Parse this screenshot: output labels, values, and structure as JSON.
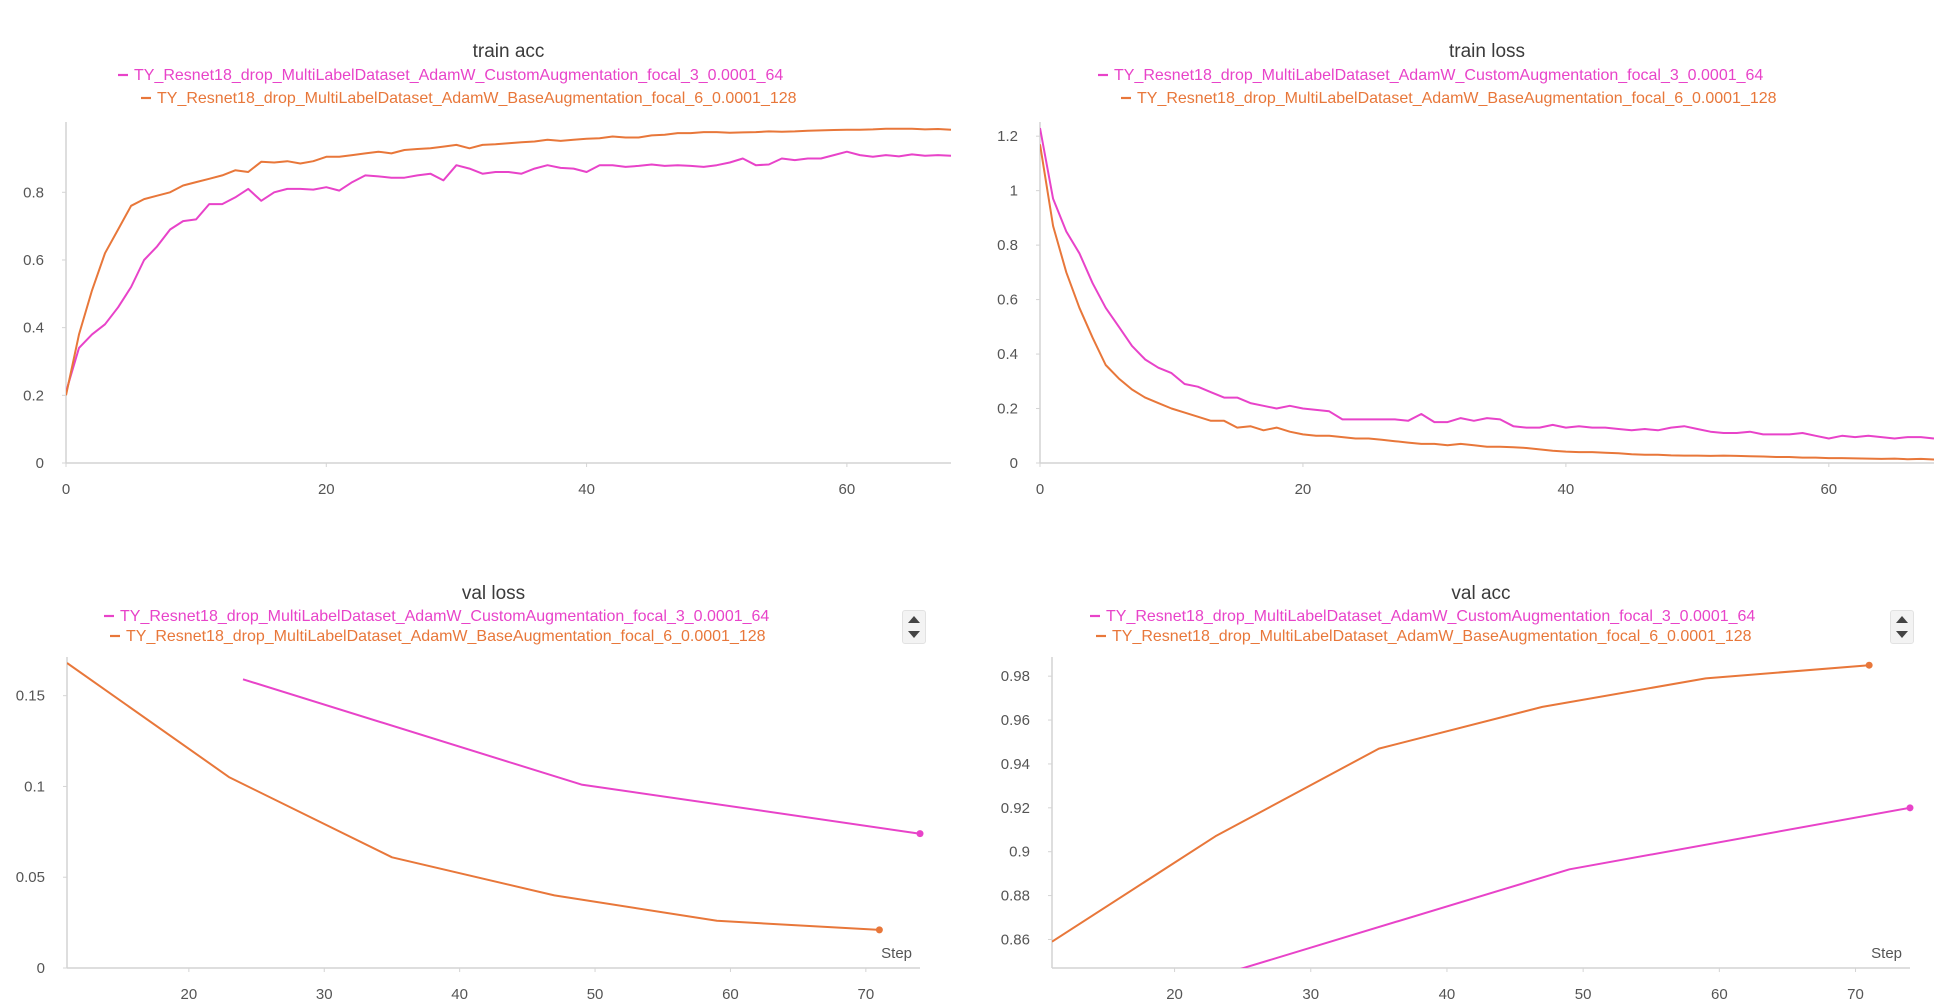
{
  "colors": {
    "pink": "#e843c9",
    "orange": "#e8773a",
    "axis": "#d4d4d4",
    "grid": "#e9e9e9"
  },
  "chart_data": [
    {
      "type": "line",
      "title": "train acc",
      "xlabel": "",
      "ylabel": "",
      "xlim": [
        0,
        68
      ],
      "ylim": [
        0,
        0.99
      ],
      "xticks": [
        0,
        20,
        40,
        60
      ],
      "yticks": [
        0,
        0.2,
        0.4,
        0.6,
        0.8
      ],
      "xtick_labels": [
        "0",
        "20",
        "40",
        "60"
      ],
      "ytick_labels": [
        "0",
        "0.2",
        "0.4",
        "0.6",
        "0.8"
      ],
      "legend_position": "top-center",
      "series": [
        {
          "name": "TY_Resnet18_drop_MultiLabelDataset_AdamW_CustomAugmentation_focal_3_0.0001_64",
          "color": "#e843c9",
          "x": [
            0,
            1,
            2,
            3,
            4,
            5,
            6,
            7,
            8,
            9,
            10,
            11,
            12,
            13,
            14,
            15,
            16,
            17,
            18,
            19,
            20,
            21,
            22,
            23,
            24,
            25,
            26,
            27,
            28,
            29,
            30,
            31,
            32,
            33,
            34,
            35,
            36,
            37,
            38,
            39,
            40,
            41,
            42,
            43,
            44,
            45,
            46,
            47,
            48,
            49,
            50,
            51,
            52,
            53,
            54,
            55,
            56,
            57,
            58,
            59,
            60,
            61,
            62,
            63,
            64,
            65,
            66,
            67,
            68
          ],
          "y": [
            0.21,
            0.34,
            0.38,
            0.41,
            0.46,
            0.52,
            0.6,
            0.64,
            0.69,
            0.715,
            0.72,
            0.765,
            0.765,
            0.785,
            0.81,
            0.775,
            0.8,
            0.81,
            0.81,
            0.808,
            0.815,
            0.805,
            0.83,
            0.85,
            0.847,
            0.843,
            0.843,
            0.85,
            0.855,
            0.835,
            0.88,
            0.87,
            0.855,
            0.86,
            0.86,
            0.855,
            0.87,
            0.88,
            0.872,
            0.87,
            0.86,
            0.88,
            0.88,
            0.875,
            0.878,
            0.882,
            0.878,
            0.88,
            0.878,
            0.875,
            0.88,
            0.888,
            0.9,
            0.88,
            0.882,
            0.9,
            0.895,
            0.9,
            0.9,
            0.91,
            0.92,
            0.91,
            0.905,
            0.91,
            0.906,
            0.912,
            0.908,
            0.91,
            0.908
          ]
        },
        {
          "name": "TY_Resnet18_drop_MultiLabelDataset_AdamW_BaseAugmentation_focal_6_0.0001_128",
          "color": "#e8773a",
          "x": [
            0,
            1,
            2,
            3,
            4,
            5,
            6,
            7,
            8,
            9,
            10,
            11,
            12,
            13,
            14,
            15,
            16,
            17,
            18,
            19,
            20,
            21,
            22,
            23,
            24,
            25,
            26,
            27,
            28,
            29,
            30,
            31,
            32,
            33,
            34,
            35,
            36,
            37,
            38,
            39,
            40,
            41,
            42,
            43,
            44,
            45,
            46,
            47,
            48,
            49,
            50,
            51,
            52,
            53,
            54,
            55,
            56,
            57,
            58,
            59,
            60,
            61,
            62,
            63,
            64,
            65,
            66,
            67,
            68
          ],
          "y": [
            0.2,
            0.38,
            0.51,
            0.62,
            0.69,
            0.76,
            0.78,
            0.79,
            0.8,
            0.82,
            0.83,
            0.84,
            0.85,
            0.865,
            0.86,
            0.89,
            0.888,
            0.892,
            0.885,
            0.892,
            0.905,
            0.905,
            0.91,
            0.915,
            0.92,
            0.915,
            0.925,
            0.928,
            0.93,
            0.935,
            0.94,
            0.93,
            0.94,
            0.942,
            0.945,
            0.948,
            0.95,
            0.955,
            0.952,
            0.955,
            0.958,
            0.96,
            0.965,
            0.962,
            0.962,
            0.968,
            0.97,
            0.975,
            0.975,
            0.978,
            0.978,
            0.976,
            0.977,
            0.978,
            0.98,
            0.979,
            0.98,
            0.982,
            0.983,
            0.984,
            0.985,
            0.985,
            0.986,
            0.988,
            0.988,
            0.988,
            0.986,
            0.987,
            0.985
          ]
        }
      ]
    },
    {
      "type": "line",
      "title": "train loss",
      "xlabel": "",
      "ylabel": "",
      "xlim": [
        0,
        68
      ],
      "ylim": [
        0,
        1.23
      ],
      "xticks": [
        0,
        20,
        40,
        60
      ],
      "yticks": [
        0,
        0.2,
        0.4,
        0.6,
        0.8,
        1,
        1.2
      ],
      "xtick_labels": [
        "0",
        "20",
        "40",
        "60"
      ],
      "ytick_labels": [
        "0",
        "0.2",
        "0.4",
        "0.6",
        "0.8",
        "1",
        "1.2"
      ],
      "legend_position": "top-center",
      "series": [
        {
          "name": "TY_Resnet18_drop_MultiLabelDataset_AdamW_CustomAugmentation_focal_3_0.0001_64",
          "color": "#e843c9",
          "x": [
            0,
            1,
            2,
            3,
            4,
            5,
            6,
            7,
            8,
            9,
            10,
            11,
            12,
            13,
            14,
            15,
            16,
            17,
            18,
            19,
            20,
            21,
            22,
            23,
            24,
            25,
            26,
            27,
            28,
            29,
            30,
            31,
            32,
            33,
            34,
            35,
            36,
            37,
            38,
            39,
            40,
            41,
            42,
            43,
            44,
            45,
            46,
            47,
            48,
            49,
            50,
            51,
            52,
            53,
            54,
            55,
            56,
            57,
            58,
            59,
            60,
            61,
            62,
            63,
            64,
            65,
            66,
            67,
            68
          ],
          "y": [
            1.23,
            0.97,
            0.85,
            0.77,
            0.66,
            0.57,
            0.5,
            0.43,
            0.38,
            0.35,
            0.33,
            0.29,
            0.28,
            0.26,
            0.24,
            0.24,
            0.22,
            0.21,
            0.2,
            0.21,
            0.2,
            0.195,
            0.19,
            0.16,
            0.16,
            0.16,
            0.16,
            0.16,
            0.155,
            0.18,
            0.15,
            0.15,
            0.165,
            0.155,
            0.165,
            0.16,
            0.135,
            0.13,
            0.13,
            0.14,
            0.13,
            0.135,
            0.13,
            0.13,
            0.125,
            0.12,
            0.125,
            0.12,
            0.13,
            0.135,
            0.125,
            0.115,
            0.11,
            0.11,
            0.115,
            0.105,
            0.105,
            0.105,
            0.11,
            0.1,
            0.09,
            0.1,
            0.095,
            0.1,
            0.095,
            0.09,
            0.095,
            0.095,
            0.09
          ]
        },
        {
          "name": "TY_Resnet18_drop_MultiLabelDataset_AdamW_BaseAugmentation_focal_6_0.0001_128",
          "color": "#e8773a",
          "x": [
            0,
            1,
            2,
            3,
            4,
            5,
            6,
            7,
            8,
            9,
            10,
            11,
            12,
            13,
            14,
            15,
            16,
            17,
            18,
            19,
            20,
            21,
            22,
            23,
            24,
            25,
            26,
            27,
            28,
            29,
            30,
            31,
            32,
            33,
            34,
            35,
            36,
            37,
            38,
            39,
            40,
            41,
            42,
            43,
            44,
            45,
            46,
            47,
            48,
            49,
            50,
            51,
            52,
            53,
            54,
            55,
            56,
            57,
            58,
            59,
            60,
            61,
            62,
            63,
            64,
            65,
            66,
            67,
            68
          ],
          "y": [
            1.17,
            0.87,
            0.7,
            0.57,
            0.46,
            0.36,
            0.31,
            0.27,
            0.24,
            0.22,
            0.2,
            0.185,
            0.17,
            0.155,
            0.155,
            0.13,
            0.135,
            0.12,
            0.13,
            0.115,
            0.105,
            0.1,
            0.1,
            0.095,
            0.09,
            0.09,
            0.085,
            0.08,
            0.075,
            0.07,
            0.07,
            0.065,
            0.07,
            0.065,
            0.06,
            0.06,
            0.058,
            0.055,
            0.05,
            0.045,
            0.042,
            0.04,
            0.04,
            0.038,
            0.036,
            0.032,
            0.03,
            0.03,
            0.028,
            0.027,
            0.027,
            0.026,
            0.027,
            0.026,
            0.025,
            0.024,
            0.022,
            0.022,
            0.02,
            0.02,
            0.018,
            0.018,
            0.017,
            0.016,
            0.015,
            0.016,
            0.014,
            0.015,
            0.013
          ]
        }
      ]
    },
    {
      "type": "line",
      "title": "val loss",
      "xlabel": "Step",
      "ylabel": "",
      "xlim": [
        11,
        74
      ],
      "ylim": [
        0,
        0.168
      ],
      "xticks": [
        20,
        30,
        40,
        50,
        60,
        70
      ],
      "yticks": [
        0,
        0.05,
        0.1,
        0.15
      ],
      "xtick_labels": [
        "20",
        "30",
        "40",
        "50",
        "60",
        "70"
      ],
      "ytick_labels": [
        "0",
        "0.05",
        "0.1",
        "0.15"
      ],
      "legend_position": "top-left",
      "series": [
        {
          "name": "TY_Resnet18_drop_MultiLabelDataset_AdamW_CustomAugmentation_focal_3_0.0001_64",
          "color": "#e843c9",
          "x": [
            24,
            49,
            74
          ],
          "y": [
            0.159,
            0.101,
            0.074
          ]
        },
        {
          "name": "TY_Resnet18_drop_MultiLabelDataset_AdamW_BaseAugmentation_focal_6_0.0001_128",
          "color": "#e8773a",
          "x": [
            11,
            23,
            35,
            47,
            59,
            71
          ],
          "y": [
            0.168,
            0.105,
            0.061,
            0.04,
            0.026,
            0.021
          ]
        }
      ]
    },
    {
      "type": "line",
      "title": "val acc",
      "xlabel": "Step",
      "ylabel": "",
      "xlim": [
        11,
        74
      ],
      "ylim": [
        0.847,
        0.986
      ],
      "xticks": [
        20,
        30,
        40,
        50,
        60,
        70
      ],
      "yticks": [
        0.86,
        0.88,
        0.9,
        0.92,
        0.94,
        0.96,
        0.98
      ],
      "xtick_labels": [
        "20",
        "30",
        "40",
        "50",
        "60",
        "70"
      ],
      "ytick_labels": [
        "0.86",
        "0.88",
        "0.9",
        "0.92",
        "0.94",
        "0.96",
        "0.98"
      ],
      "legend_position": "top-left",
      "series": [
        {
          "name": "TY_Resnet18_drop_MultiLabelDataset_AdamW_CustomAugmentation_focal_3_0.0001_64",
          "color": "#e843c9",
          "x": [
            24,
            49,
            74
          ],
          "y": [
            0.845,
            0.892,
            0.92
          ]
        },
        {
          "name": "TY_Resnet18_drop_MultiLabelDataset_AdamW_BaseAugmentation_focal_6_0.0001_128",
          "color": "#e8773a",
          "x": [
            11,
            23,
            35,
            47,
            59,
            71
          ],
          "y": [
            0.859,
            0.907,
            0.947,
            0.966,
            0.979,
            0.985
          ]
        }
      ]
    }
  ]
}
